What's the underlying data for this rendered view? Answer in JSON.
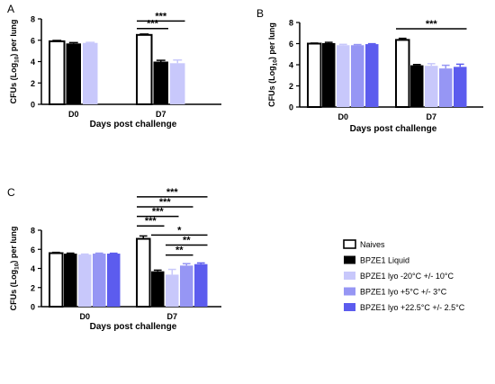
{
  "chart_data": [
    {
      "panel_label": "A",
      "type": "bar",
      "title": "",
      "xlabel": "Days post challenge",
      "ylabel_main": "CFUs (Log",
      "ylabel_sub": "10",
      "ylabel_tail": ") per lung",
      "ylim": [
        0,
        8
      ],
      "yticks": [
        "0",
        "2",
        "4",
        "6",
        "8"
      ],
      "categories": [
        "D0",
        "D7"
      ],
      "series": [
        {
          "values": [
            5.9,
            6.5
          ],
          "errors": [
            0.08,
            0.08
          ]
        },
        {
          "values": [
            5.7,
            4.0
          ],
          "errors": [
            0.08,
            0.12
          ]
        },
        {
          "values": [
            5.75,
            3.85
          ],
          "errors": [
            0.05,
            0.3
          ]
        }
      ],
      "annotations": [
        {
          "text": "***",
          "group": 1,
          "from": 0,
          "to": 1,
          "y": 7.1
        },
        {
          "text": "***",
          "group": 1,
          "from": 0,
          "to": 2,
          "y": 7.8
        }
      ]
    },
    {
      "panel_label": "B",
      "type": "bar",
      "title": "",
      "xlabel": "Days post challenge",
      "ylabel_main": "CFUs (Log",
      "ylabel_sub": "10",
      "ylabel_tail": ") per lung",
      "ylim": [
        0,
        8
      ],
      "yticks": [
        "0",
        "2",
        "4",
        "6",
        "8"
      ],
      "categories": [
        "D0",
        "D7"
      ],
      "series": [
        {
          "values": [
            6.0,
            6.35
          ],
          "errors": [
            0.05,
            0.15
          ]
        },
        {
          "values": [
            6.05,
            3.95
          ],
          "errors": [
            0.07,
            0.07
          ]
        },
        {
          "values": [
            5.85,
            3.9
          ],
          "errors": [
            0.08,
            0.2
          ]
        },
        {
          "values": [
            5.85,
            3.65
          ],
          "errors": [
            0.06,
            0.3
          ]
        },
        {
          "values": [
            5.95,
            3.8
          ],
          "errors": [
            0.04,
            0.25
          ]
        }
      ],
      "annotations": [
        {
          "text": "***",
          "group": 1,
          "from": 0,
          "to": 4,
          "y": 7.4
        }
      ]
    },
    {
      "panel_label": "C",
      "type": "bar",
      "title": "",
      "xlabel": "Days post challenge",
      "ylabel_main": "CFUs (Log",
      "ylabel_sub": "10",
      "ylabel_tail": ") per lung",
      "ylim": [
        0,
        8
      ],
      "yticks": [
        "0",
        "2",
        "4",
        "6",
        "8"
      ],
      "categories": [
        "D0",
        "D7"
      ],
      "series": [
        {
          "values": [
            5.6,
            7.1
          ],
          "errors": [
            0.08,
            0.3
          ]
        },
        {
          "values": [
            5.55,
            3.7
          ],
          "errors": [
            0.05,
            0.12
          ]
        },
        {
          "values": [
            5.45,
            3.35
          ],
          "errors": [
            0.05,
            0.55
          ]
        },
        {
          "values": [
            5.55,
            4.3
          ],
          "errors": [
            0.05,
            0.2
          ]
        },
        {
          "values": [
            5.55,
            4.45
          ],
          "errors": [
            0.04,
            0.12
          ]
        }
      ],
      "annotations": [
        {
          "text": "***",
          "group": 1,
          "from": 0,
          "to": 4,
          "y": 11.5
        },
        {
          "text": "***",
          "group": 1,
          "from": 0,
          "to": 3,
          "y": 10.45
        },
        {
          "text": "***",
          "group": 1,
          "from": 0,
          "to": 2,
          "y": 9.45
        },
        {
          "text": "***",
          "group": 1,
          "from": 0,
          "to": 1,
          "y": 8.45
        },
        {
          "text": "*",
          "group": 1,
          "from": 1,
          "to": 4,
          "y": 7.5
        },
        {
          "text": "**",
          "group": 1,
          "from": 2,
          "to": 4,
          "y": 6.45
        },
        {
          "text": "**",
          "group": 1,
          "from": 2,
          "to": 3,
          "y": 5.4
        }
      ]
    }
  ],
  "legend": {
    "placement": "right of panel C",
    "entries": [
      {
        "label": "Naives",
        "color": "#ffffff"
      },
      {
        "label": "BPZE1 Liquid",
        "color": "#000000"
      },
      {
        "label": "BPZE1 lyo -20°C +/- 10°C",
        "color": "#c8c8fb"
      },
      {
        "label": "BPZE1 lyo +5°C +/- 3°C",
        "color": "#9696f4"
      },
      {
        "label": "BPZE1 lyo +22.5°C +/- 2.5°C",
        "color": "#5c5cee"
      }
    ]
  },
  "colors": [
    "#ffffff",
    "#000000",
    "#c8c8fb",
    "#9696f4",
    "#5c5cee"
  ]
}
